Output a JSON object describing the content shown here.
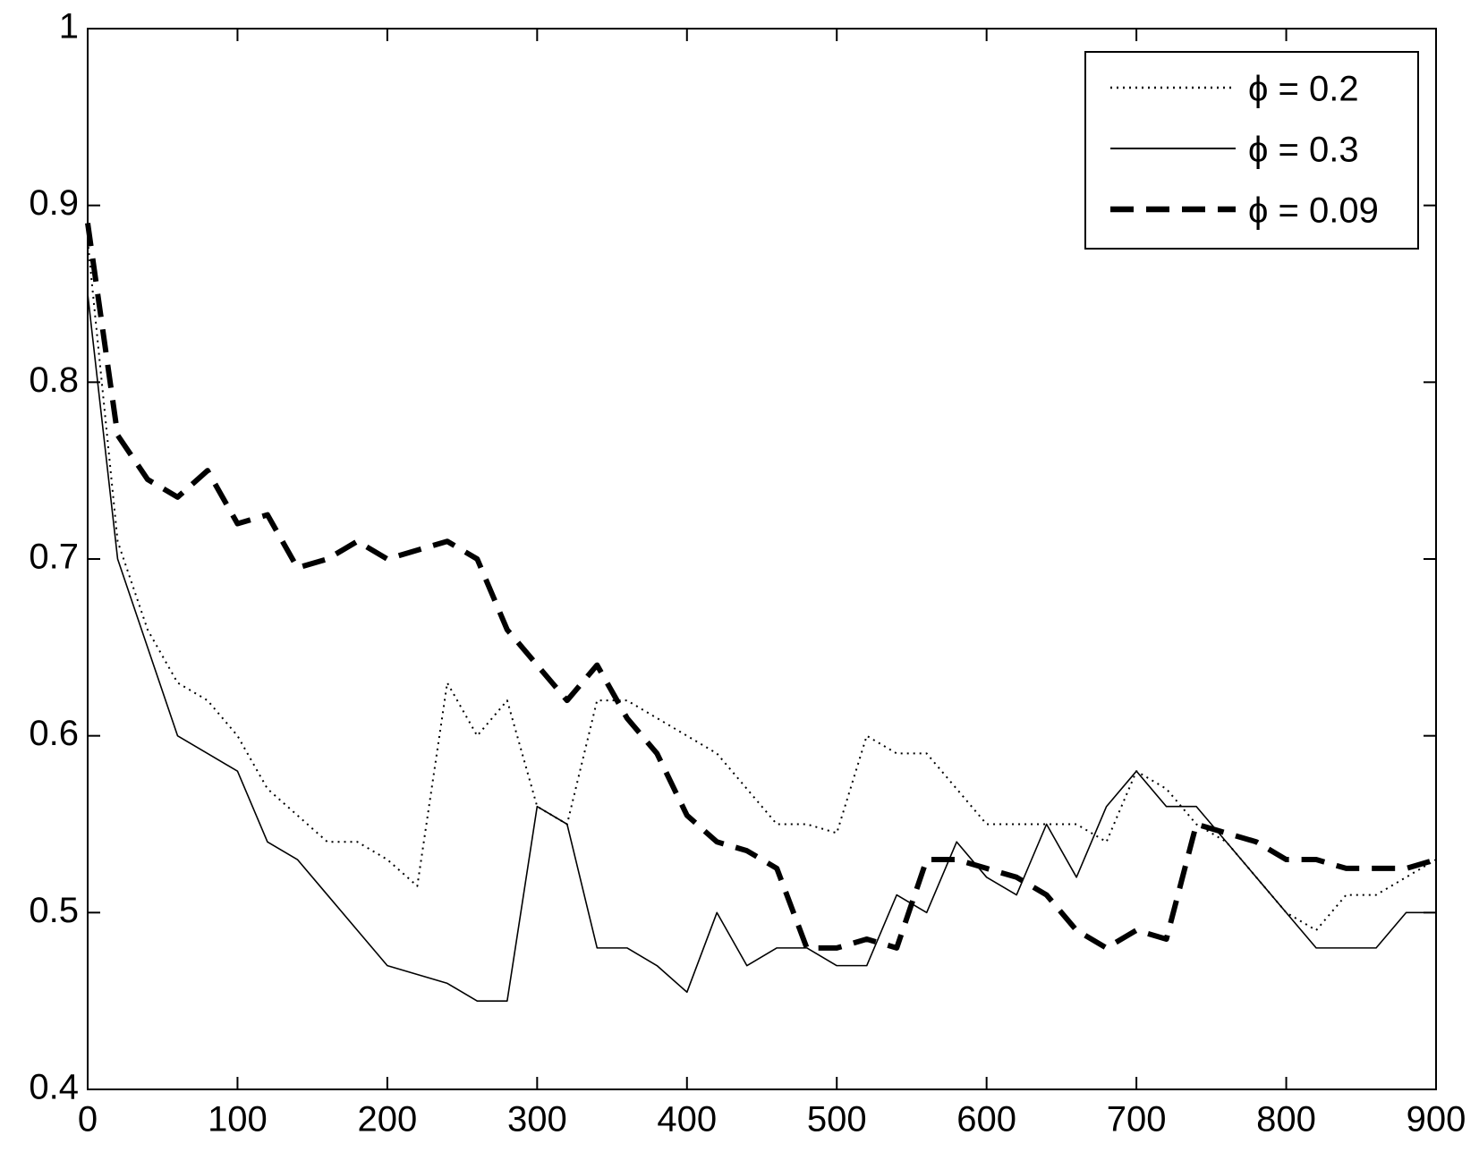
{
  "chart_data": {
    "type": "line",
    "x": [
      0,
      20,
      40,
      60,
      80,
      100,
      120,
      140,
      160,
      180,
      200,
      220,
      240,
      260,
      280,
      300,
      320,
      340,
      360,
      380,
      400,
      420,
      440,
      460,
      480,
      500,
      520,
      540,
      560,
      580,
      600,
      620,
      640,
      660,
      680,
      700,
      720,
      740,
      760,
      780,
      800,
      820,
      840,
      860,
      880,
      900
    ],
    "series": [
      {
        "name": "ϕ = 0.2",
        "color": "#000000",
        "dash": "dotted",
        "values": [
          0.88,
          0.71,
          0.66,
          0.63,
          0.62,
          0.6,
          0.57,
          0.555,
          0.54,
          0.54,
          0.53,
          0.515,
          0.63,
          0.6,
          0.62,
          0.56,
          0.55,
          0.62,
          0.62,
          0.61,
          0.6,
          0.59,
          0.57,
          0.55,
          0.55,
          0.545,
          0.6,
          0.59,
          0.59,
          0.57,
          0.55,
          0.55,
          0.55,
          0.55,
          0.54,
          0.58,
          0.57,
          0.55,
          0.54,
          0.52,
          0.5,
          0.49,
          0.51,
          0.51,
          0.52,
          0.53
        ]
      },
      {
        "name": "ϕ = 0.3",
        "color": "#000000",
        "dash": "solid",
        "values": [
          0.85,
          0.7,
          0.65,
          0.6,
          0.59,
          0.58,
          0.54,
          0.53,
          0.51,
          0.49,
          0.47,
          0.465,
          0.46,
          0.45,
          0.45,
          0.56,
          0.55,
          0.48,
          0.48,
          0.47,
          0.455,
          0.5,
          0.47,
          0.48,
          0.48,
          0.47,
          0.47,
          0.51,
          0.5,
          0.54,
          0.52,
          0.51,
          0.55,
          0.52,
          0.56,
          0.58,
          0.56,
          0.56,
          0.54,
          0.52,
          0.5,
          0.48,
          0.48,
          0.48,
          0.5,
          0.5
        ]
      },
      {
        "name": "ϕ = 0.09",
        "color": "#000000",
        "dash": "dashed",
        "values": [
          0.89,
          0.77,
          0.745,
          0.735,
          0.75,
          0.72,
          0.725,
          0.695,
          0.7,
          0.71,
          0.7,
          0.705,
          0.71,
          0.7,
          0.66,
          0.64,
          0.62,
          0.64,
          0.61,
          0.59,
          0.555,
          0.54,
          0.535,
          0.525,
          0.48,
          0.48,
          0.485,
          0.48,
          0.53,
          0.53,
          0.525,
          0.52,
          0.51,
          0.49,
          0.48,
          0.49,
          0.485,
          0.55,
          0.545,
          0.54,
          0.53,
          0.53,
          0.525,
          0.525,
          0.525,
          0.53
        ]
      }
    ],
    "xlim": [
      0,
      900
    ],
    "xticks": [
      0,
      100,
      200,
      300,
      400,
      500,
      600,
      700,
      800,
      900
    ],
    "ylim": [
      0.4,
      1
    ],
    "yticks": [
      0.4,
      0.5,
      0.6,
      0.7,
      0.8,
      0.9,
      1
    ],
    "grid": false,
    "legend": "upper right"
  }
}
